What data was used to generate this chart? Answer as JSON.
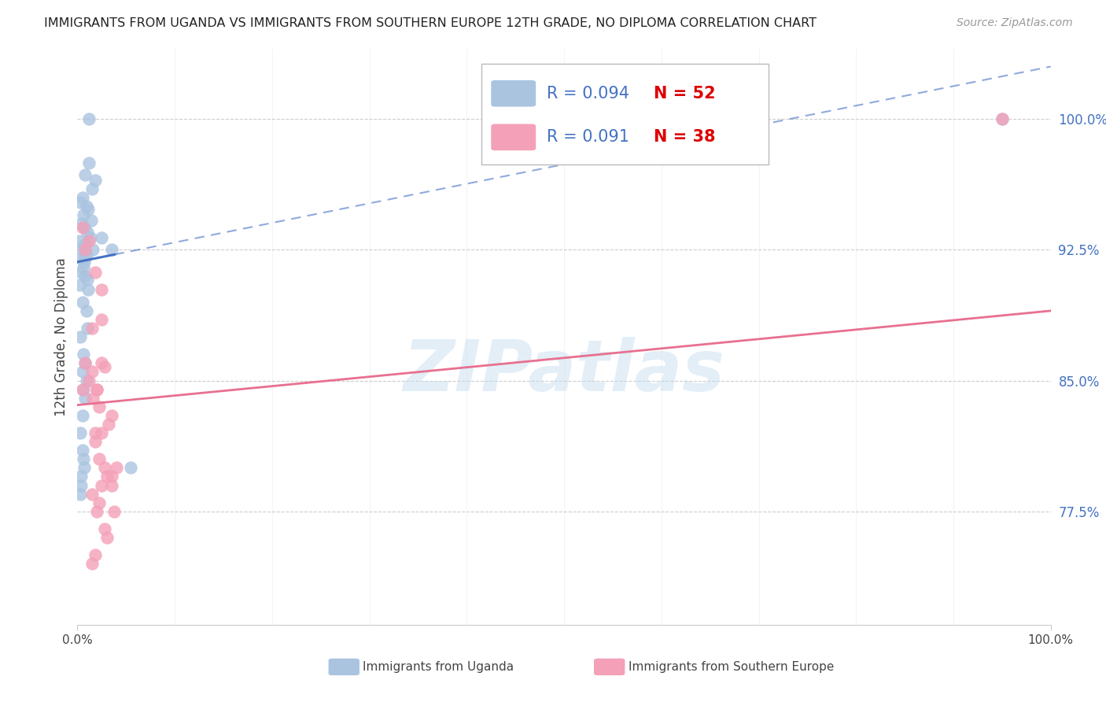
{
  "title": "IMMIGRANTS FROM UGANDA VS IMMIGRANTS FROM SOUTHERN EUROPE 12TH GRADE, NO DIPLOMA CORRELATION CHART",
  "source": "Source: ZipAtlas.com",
  "ylabel": "12th Grade, No Diploma",
  "xlim": [
    0.0,
    100.0
  ],
  "ylim": [
    71.0,
    104.0
  ],
  "yticks": [
    77.5,
    85.0,
    92.5,
    100.0
  ],
  "ytick_labels": [
    "77.5%",
    "85.0%",
    "92.5%",
    "100.0%"
  ],
  "xtick_labels": [
    "0.0%",
    "100.0%"
  ],
  "blue_R": "0.094",
  "blue_N": "52",
  "pink_R": "0.091",
  "pink_N": "38",
  "blue_color": "#aac4e0",
  "pink_color": "#f4a0b8",
  "blue_line_color": "#4472c4",
  "pink_line_color": "#e87090",
  "R_text_color": "#4472c4",
  "N_text_color": "#dd0000",
  "watermark_text": "ZIPatlas",
  "watermark_color": "#c8dff0",
  "blue_scatter_x": [
    0.5,
    1.2,
    1.8,
    0.8,
    1.5,
    0.3,
    0.9,
    1.1,
    0.6,
    1.4,
    0.4,
    0.7,
    1.0,
    1.3,
    0.2,
    0.8,
    0.5,
    0.9,
    0.3,
    0.7,
    0.6,
    0.4,
    0.8,
    1.0,
    0.2,
    2.5,
    0.5,
    0.9,
    3.5,
    1.0,
    0.3,
    0.6,
    0.8,
    0.5,
    0.9,
    0.6,
    0.8,
    0.3,
    0.5,
    1.6,
    0.4,
    0.8,
    0.3,
    0.6,
    5.5,
    1.2,
    0.7,
    0.5,
    1.1,
    0.4,
    0.7,
    95.0
  ],
  "blue_scatter_y": [
    95.5,
    97.5,
    96.5,
    96.8,
    96.0,
    95.2,
    95.0,
    94.8,
    94.5,
    94.2,
    94.0,
    93.8,
    93.5,
    93.2,
    93.0,
    92.8,
    92.5,
    92.2,
    92.0,
    91.8,
    91.5,
    91.2,
    91.0,
    90.8,
    90.5,
    93.2,
    89.5,
    89.0,
    92.5,
    88.0,
    87.5,
    86.5,
    86.0,
    85.5,
    85.0,
    84.5,
    84.0,
    82.0,
    83.0,
    92.5,
    79.5,
    92.0,
    78.5,
    80.5,
    80.0,
    100.0,
    92.8,
    81.0,
    90.2,
    79.0,
    80.0,
    100.0
  ],
  "pink_scatter_x": [
    0.5,
    1.2,
    1.8,
    0.8,
    1.5,
    2.5,
    2.8,
    1.2,
    2.0,
    1.6,
    2.2,
    3.5,
    3.2,
    2.5,
    1.8,
    2.8,
    2.0,
    3.0,
    2.5,
    1.5,
    2.2,
    3.8,
    2.5,
    3.5,
    2.8,
    3.0,
    1.8,
    2.2,
    1.5,
    2.5,
    4.0,
    3.5,
    2.0,
    1.5,
    0.5,
    1.8,
    0.8,
    95.0
  ],
  "pink_scatter_y": [
    93.8,
    93.0,
    91.2,
    86.0,
    85.5,
    90.2,
    85.8,
    85.0,
    84.5,
    84.0,
    83.5,
    83.0,
    82.5,
    82.0,
    81.5,
    80.0,
    84.5,
    79.5,
    79.0,
    78.5,
    78.0,
    77.5,
    86.0,
    79.0,
    76.5,
    76.0,
    82.0,
    80.5,
    88.0,
    88.5,
    80.0,
    79.5,
    77.5,
    74.5,
    84.5,
    75.0,
    92.5,
    100.0
  ],
  "blue_trend_y0": 91.8,
  "blue_trend_y1": 103.0,
  "blue_solid_end_x": 3.8,
  "pink_trend_y0": 83.6,
  "pink_trend_y1": 89.0,
  "grid_color": "#cccccc",
  "grid_linestyle": "--",
  "spine_color": "#cccccc",
  "title_fontsize": 11.5,
  "source_fontsize": 10,
  "ytick_fontsize": 12,
  "xtick_fontsize": 11,
  "ylabel_fontsize": 12,
  "legend_fontsize": 15,
  "watermark_fontsize": 65
}
